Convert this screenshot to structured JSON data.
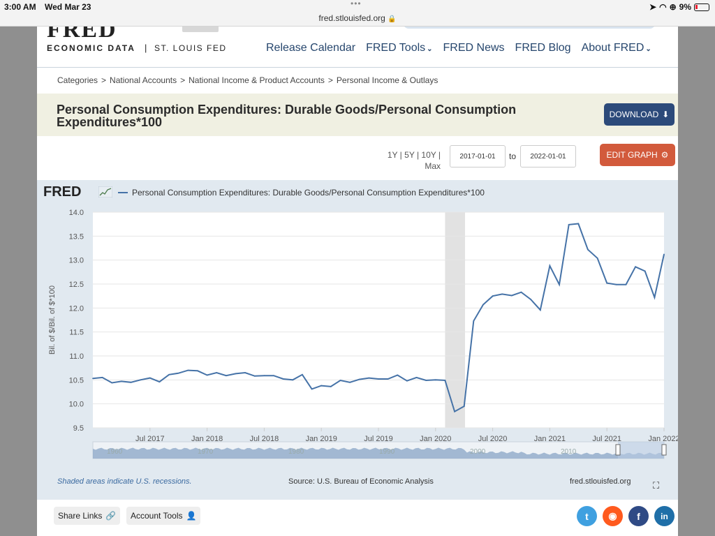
{
  "status_bar": {
    "time": "3:00 AM",
    "date": "Wed Mar 23",
    "url": "fred.stlouisfed.org",
    "battery": "9%"
  },
  "header": {
    "logo_text": "FRED",
    "economic_data": "ECONOMIC DATA",
    "separator": "|",
    "st_louis_fed": "ST. LOUIS FED",
    "nav": [
      "Release Calendar",
      "FRED Tools",
      "FRED News",
      "FRED Blog",
      "About FRED"
    ]
  },
  "breadcrumb": [
    "Categories",
    "National Accounts",
    "National Income & Product Accounts",
    "Personal Income & Outlays"
  ],
  "title": "Personal Consumption Expenditures: Durable Goods/Personal Consumption Expenditures*100",
  "download_label": "DOWNLOAD",
  "range": {
    "links": [
      "1Y",
      "5Y",
      "10Y",
      "Max"
    ],
    "start": "2017-01-01",
    "to": "to",
    "end": "2022-01-01",
    "edit_label": "EDIT GRAPH"
  },
  "graph": {
    "fred_logo": "FRED",
    "recession_note": "Shaded areas indicate U.S. recessions.",
    "source": "Source: U.S. Bureau of Economic Analysis",
    "site": "fred.stlouisfed.org"
  },
  "footer": {
    "share_links": "Share Links",
    "account_tools": "Account Tools"
  },
  "colors": {
    "line": "#4572a7",
    "recession": "#e2e2e2",
    "panel": "#e1e9f0",
    "download": "#2c4a7a",
    "edit": "#d25a3c"
  },
  "chart_data": {
    "type": "line",
    "legend": "Personal Consumption Expenditures: Durable Goods/Personal Consumption Expenditures*100",
    "ylabel": "Bil. of $/Bil. of $*100",
    "xlabel": "",
    "ylim": [
      9.5,
      14.0
    ],
    "yticks": [
      "9.5",
      "10.0",
      "10.5",
      "11.0",
      "11.5",
      "12.0",
      "12.5",
      "13.0",
      "13.5",
      "14.0"
    ],
    "xticks": [
      "Jul 2017",
      "Jan 2018",
      "Jul 2018",
      "Jan 2019",
      "Jul 2019",
      "Jan 2020",
      "Jul 2020",
      "Jan 2021",
      "Jul 2021",
      "Jan 2022"
    ],
    "grid": true,
    "recession": [
      "2020-02",
      "2020-04"
    ],
    "navigator_ticks": [
      "1960",
      "1970",
      "1980",
      "1990",
      "2000",
      "2010"
    ],
    "series": [
      {
        "name": "Personal Consumption Expenditures: Durable Goods/Personal Consumption Expenditures*100",
        "x": [
          "2017-01",
          "2017-02",
          "2017-03",
          "2017-04",
          "2017-05",
          "2017-06",
          "2017-07",
          "2017-08",
          "2017-09",
          "2017-10",
          "2017-11",
          "2017-12",
          "2018-01",
          "2018-02",
          "2018-03",
          "2018-04",
          "2018-05",
          "2018-06",
          "2018-07",
          "2018-08",
          "2018-09",
          "2018-10",
          "2018-11",
          "2018-12",
          "2019-01",
          "2019-02",
          "2019-03",
          "2019-04",
          "2019-05",
          "2019-06",
          "2019-07",
          "2019-08",
          "2019-09",
          "2019-10",
          "2019-11",
          "2019-12",
          "2020-01",
          "2020-02",
          "2020-03",
          "2020-04",
          "2020-05",
          "2020-06",
          "2020-07",
          "2020-08",
          "2020-09",
          "2020-10",
          "2020-11",
          "2020-12",
          "2021-01",
          "2021-02",
          "2021-03",
          "2021-04",
          "2021-05",
          "2021-06",
          "2021-07",
          "2021-08",
          "2021-09",
          "2021-10",
          "2021-11",
          "2021-12",
          "2022-01"
        ],
        "values": [
          10.53,
          10.55,
          10.44,
          10.47,
          10.45,
          10.5,
          10.54,
          10.46,
          10.61,
          10.64,
          10.7,
          10.69,
          10.6,
          10.65,
          10.59,
          10.63,
          10.65,
          10.58,
          10.59,
          10.59,
          10.52,
          10.5,
          10.61,
          10.31,
          10.38,
          10.36,
          10.49,
          10.45,
          10.51,
          10.54,
          10.52,
          10.52,
          10.6,
          10.48,
          10.55,
          10.49,
          10.5,
          10.49,
          9.84,
          9.95,
          11.73,
          12.07,
          12.25,
          12.29,
          12.26,
          12.33,
          12.18,
          11.96,
          12.88,
          12.49,
          13.74,
          13.76,
          13.22,
          13.04,
          12.52,
          12.49,
          12.49,
          12.86,
          12.77,
          12.22,
          13.12
        ]
      }
    ]
  }
}
